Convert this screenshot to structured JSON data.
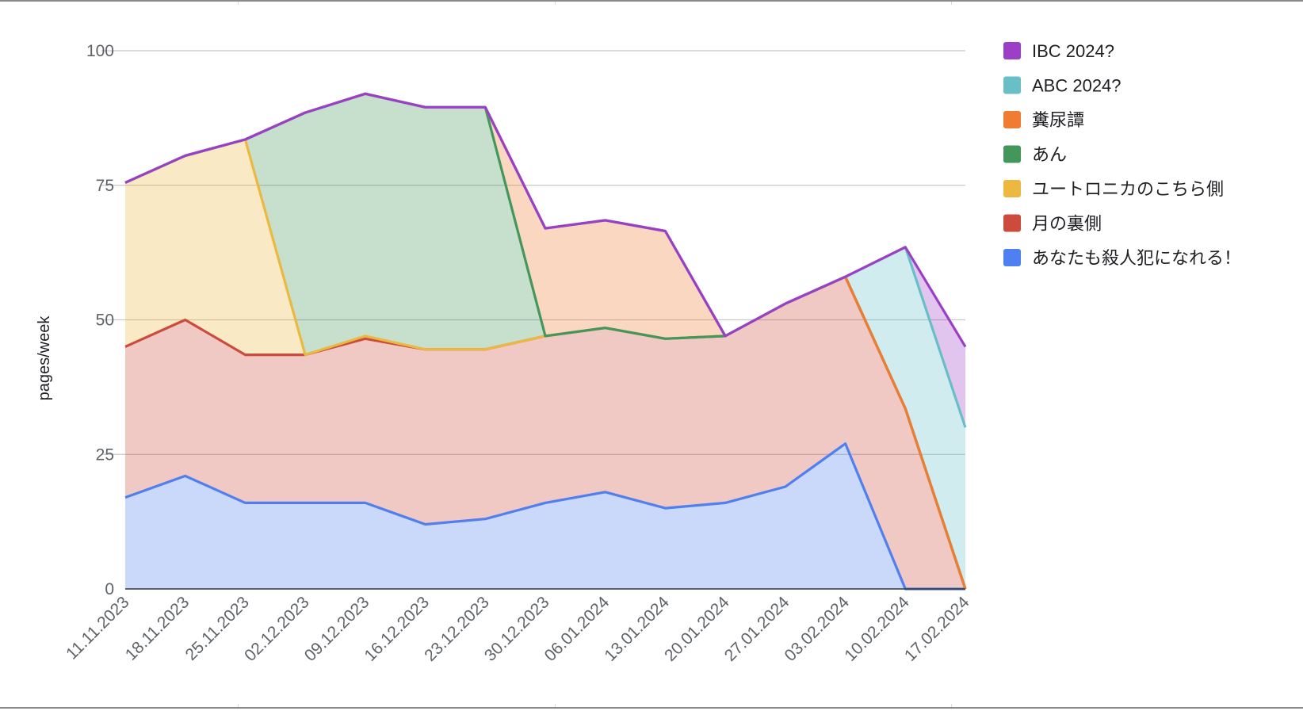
{
  "chart_data": {
    "type": "area",
    "stacked": true,
    "ylabel": "pages/week",
    "xlabel": "",
    "title": "",
    "ylim": [
      0,
      100
    ],
    "yticks": [
      0,
      25,
      50,
      75,
      100
    ],
    "grid": true,
    "legend_position": "right",
    "categories": [
      "11.11.2023",
      "18.11.2023",
      "25.11.2023",
      "02.12.2023",
      "09.12.2023",
      "16.12.2023",
      "23.12.2023",
      "30.12.2023",
      "06.01.2024",
      "13.01.2024",
      "20.01.2024",
      "27.01.2024",
      "03.02.2024",
      "10.02.2024",
      "17.02.2024"
    ],
    "series": [
      {
        "name": "あなたも殺人犯になれる！",
        "color": "#4f7ff0",
        "values": [
          17,
          21,
          16,
          16,
          16,
          12,
          13,
          16,
          18,
          15,
          16,
          19,
          27,
          0,
          0
        ]
      },
      {
        "name": "月の裏側",
        "color": "#cc4b3c",
        "values": [
          28,
          29,
          27.5,
          27.5,
          30.5,
          32.5,
          31.5,
          31,
          30.5,
          31.5,
          31,
          34,
          31,
          33.5,
          0
        ]
      },
      {
        "name": "ユートロニカのこちら側",
        "color": "#ecb840",
        "values": [
          30.5,
          30.5,
          40,
          0,
          0.5,
          0,
          0,
          0,
          0,
          0,
          0,
          0,
          0,
          0,
          0
        ]
      },
      {
        "name": "あん",
        "color": "#43975b",
        "values": [
          0,
          0,
          0,
          45,
          45,
          45,
          45,
          0,
          0,
          0,
          0,
          0,
          0,
          0,
          0
        ]
      },
      {
        "name": "糞尿譚",
        "color": "#ef7c32",
        "values": [
          0,
          0,
          0,
          0,
          0,
          0,
          0,
          20,
          20,
          20,
          0,
          0,
          0,
          0,
          0
        ]
      },
      {
        "name": "ABC 2024?",
        "color": "#68bfc6",
        "values": [
          0,
          0,
          0,
          0,
          0,
          0,
          0,
          0,
          0,
          0,
          0,
          0,
          0,
          30,
          30
        ]
      },
      {
        "name": "IBC 2024?",
        "color": "#9a3fc6",
        "values": [
          0,
          0,
          0,
          0,
          0,
          0,
          0,
          0,
          0,
          0,
          0,
          0,
          0,
          0,
          15
        ]
      }
    ]
  }
}
